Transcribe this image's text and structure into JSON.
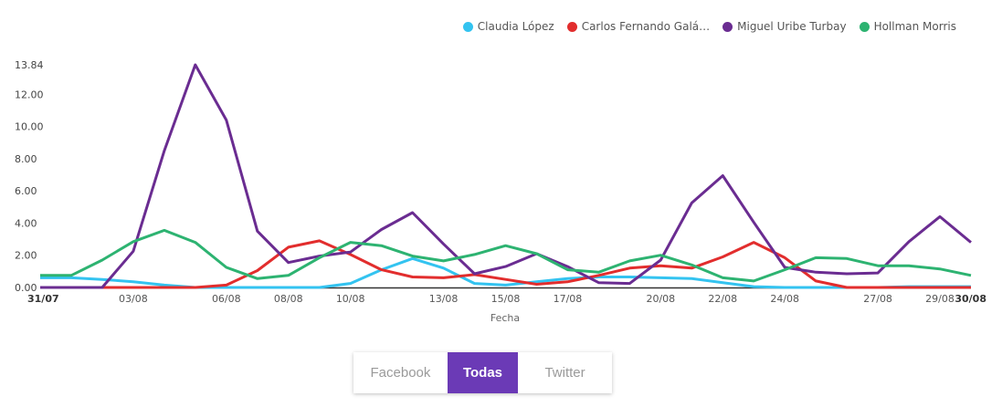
{
  "legend": [
    {
      "label": "Claudia López",
      "color": "#33c3f0"
    },
    {
      "label": "Carlos Fernando Galá…",
      "color": "#e22d2d"
    },
    {
      "label": "Miguel Uribe Turbay",
      "color": "#6a2c91"
    },
    {
      "label": "Hollman Morris",
      "color": "#2db371"
    }
  ],
  "toggle": {
    "facebook": "Facebook",
    "todas": "Todas",
    "twitter": "Twitter"
  },
  "chart_data": {
    "type": "line",
    "xlabel": "Fecha",
    "ylabel": "",
    "ylim": [
      0,
      13.84
    ],
    "y_ticks": [
      "0.00",
      "2.00",
      "4.00",
      "6.00",
      "8.00",
      "10.00",
      "12.00",
      "13.84"
    ],
    "x_ticks": [
      {
        "i": 0,
        "label": "31/07",
        "bold": true
      },
      {
        "i": 3,
        "label": "03/08"
      },
      {
        "i": 6,
        "label": "06/08"
      },
      {
        "i": 8,
        "label": "08/08"
      },
      {
        "i": 10,
        "label": "10/08"
      },
      {
        "i": 13,
        "label": "13/08"
      },
      {
        "i": 15,
        "label": "15/08"
      },
      {
        "i": 17,
        "label": "17/08"
      },
      {
        "i": 20,
        "label": "20/08"
      },
      {
        "i": 22,
        "label": "22/08"
      },
      {
        "i": 24,
        "label": "24/08"
      },
      {
        "i": 27,
        "label": "27/08"
      },
      {
        "i": 29,
        "label": "29/08"
      },
      {
        "i": 30,
        "label": "30/08",
        "bold": true
      }
    ],
    "series": [
      {
        "name": "Claudia López",
        "color": "#33c3f0",
        "values": [
          0.6,
          0.6,
          0.5,
          0.35,
          0.15,
          0,
          0,
          0,
          0,
          0,
          0.25,
          1.1,
          1.8,
          1.2,
          0.25,
          0.15,
          0.35,
          0.55,
          0.65,
          0.65,
          0.6,
          0.55,
          0.3,
          0.05,
          0,
          0,
          0,
          0,
          0.05,
          0.05,
          0.05
        ]
      },
      {
        "name": "Carlos Fernando Galá…",
        "color": "#e22d2d",
        "values": [
          0,
          0,
          0,
          0,
          0,
          0,
          0.15,
          1.05,
          2.5,
          2.9,
          2.05,
          1.1,
          0.65,
          0.6,
          0.8,
          0.5,
          0.2,
          0.35,
          0.75,
          1.2,
          1.35,
          1.2,
          1.9,
          2.8,
          1.85,
          0.4,
          0,
          0,
          0,
          0,
          0
        ]
      },
      {
        "name": "Miguel Uribe Turbay",
        "color": "#6a2c91",
        "values": [
          0,
          0,
          0,
          2.25,
          8.5,
          13.84,
          10.4,
          3.5,
          1.55,
          1.95,
          2.2,
          3.6,
          4.65,
          2.7,
          0.85,
          1.3,
          2.1,
          1.3,
          0.3,
          0.25,
          1.7,
          5.25,
          6.95,
          4.05,
          1.25,
          0.95,
          0.85,
          0.9,
          2.85,
          4.4,
          2.8
        ]
      },
      {
        "name": "Hollman Morris",
        "color": "#2db371",
        "values": [
          0.75,
          0.75,
          1.7,
          2.85,
          3.55,
          2.8,
          1.25,
          0.55,
          0.75,
          1.85,
          2.8,
          2.6,
          1.95,
          1.65,
          2.05,
          2.6,
          2.1,
          1.1,
          0.95,
          1.65,
          2.0,
          1.4,
          0.6,
          0.4,
          1.1,
          1.85,
          1.8,
          1.35,
          1.35,
          1.15,
          0.75
        ]
      }
    ]
  }
}
